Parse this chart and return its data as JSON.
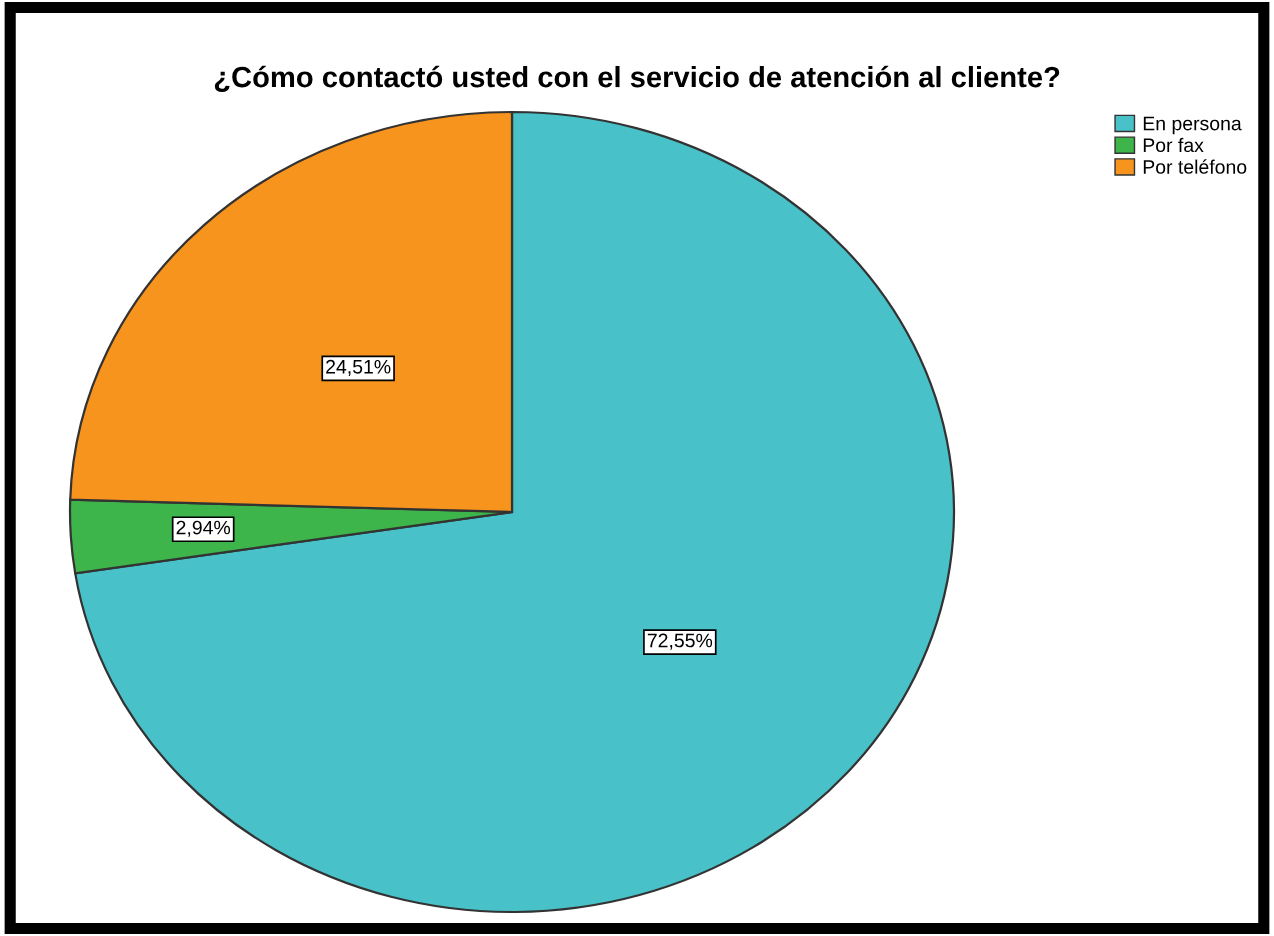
{
  "chart_data": {
    "type": "pie",
    "title": "¿Cómo contactó usted con el servicio de atención al cliente?",
    "categories": [
      "En persona",
      "Por fax",
      "Por teléfono"
    ],
    "values": [
      72.55,
      2.94,
      24.51
    ],
    "colors": [
      "#48c1c8",
      "#3db54a",
      "#f7941d"
    ],
    "value_labels": [
      "72,55%",
      "2,94%",
      "24,51%"
    ],
    "legend": "top right"
  }
}
